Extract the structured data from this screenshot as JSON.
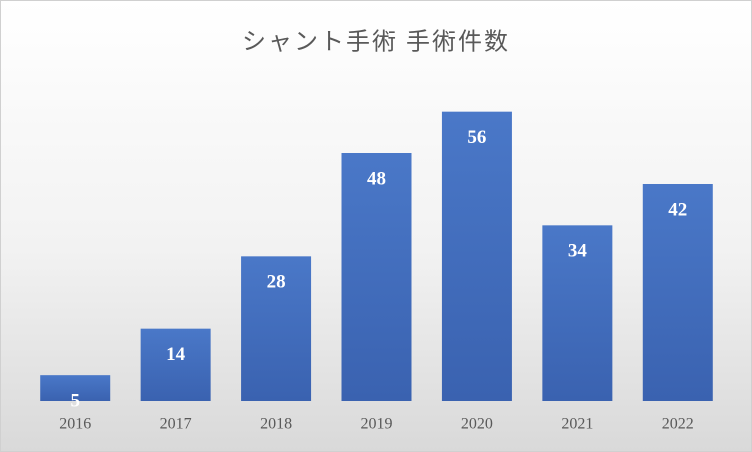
{
  "chart_data": {
    "type": "bar",
    "title": "シャント手術 手術件数",
    "categories": [
      "2016",
      "2017",
      "2018",
      "2019",
      "2020",
      "2021",
      "2022"
    ],
    "values": [
      5,
      14,
      28,
      48,
      56,
      34,
      42
    ],
    "color": "#4472c4",
    "ylim": [
      0,
      60
    ],
    "data_labels": true
  }
}
